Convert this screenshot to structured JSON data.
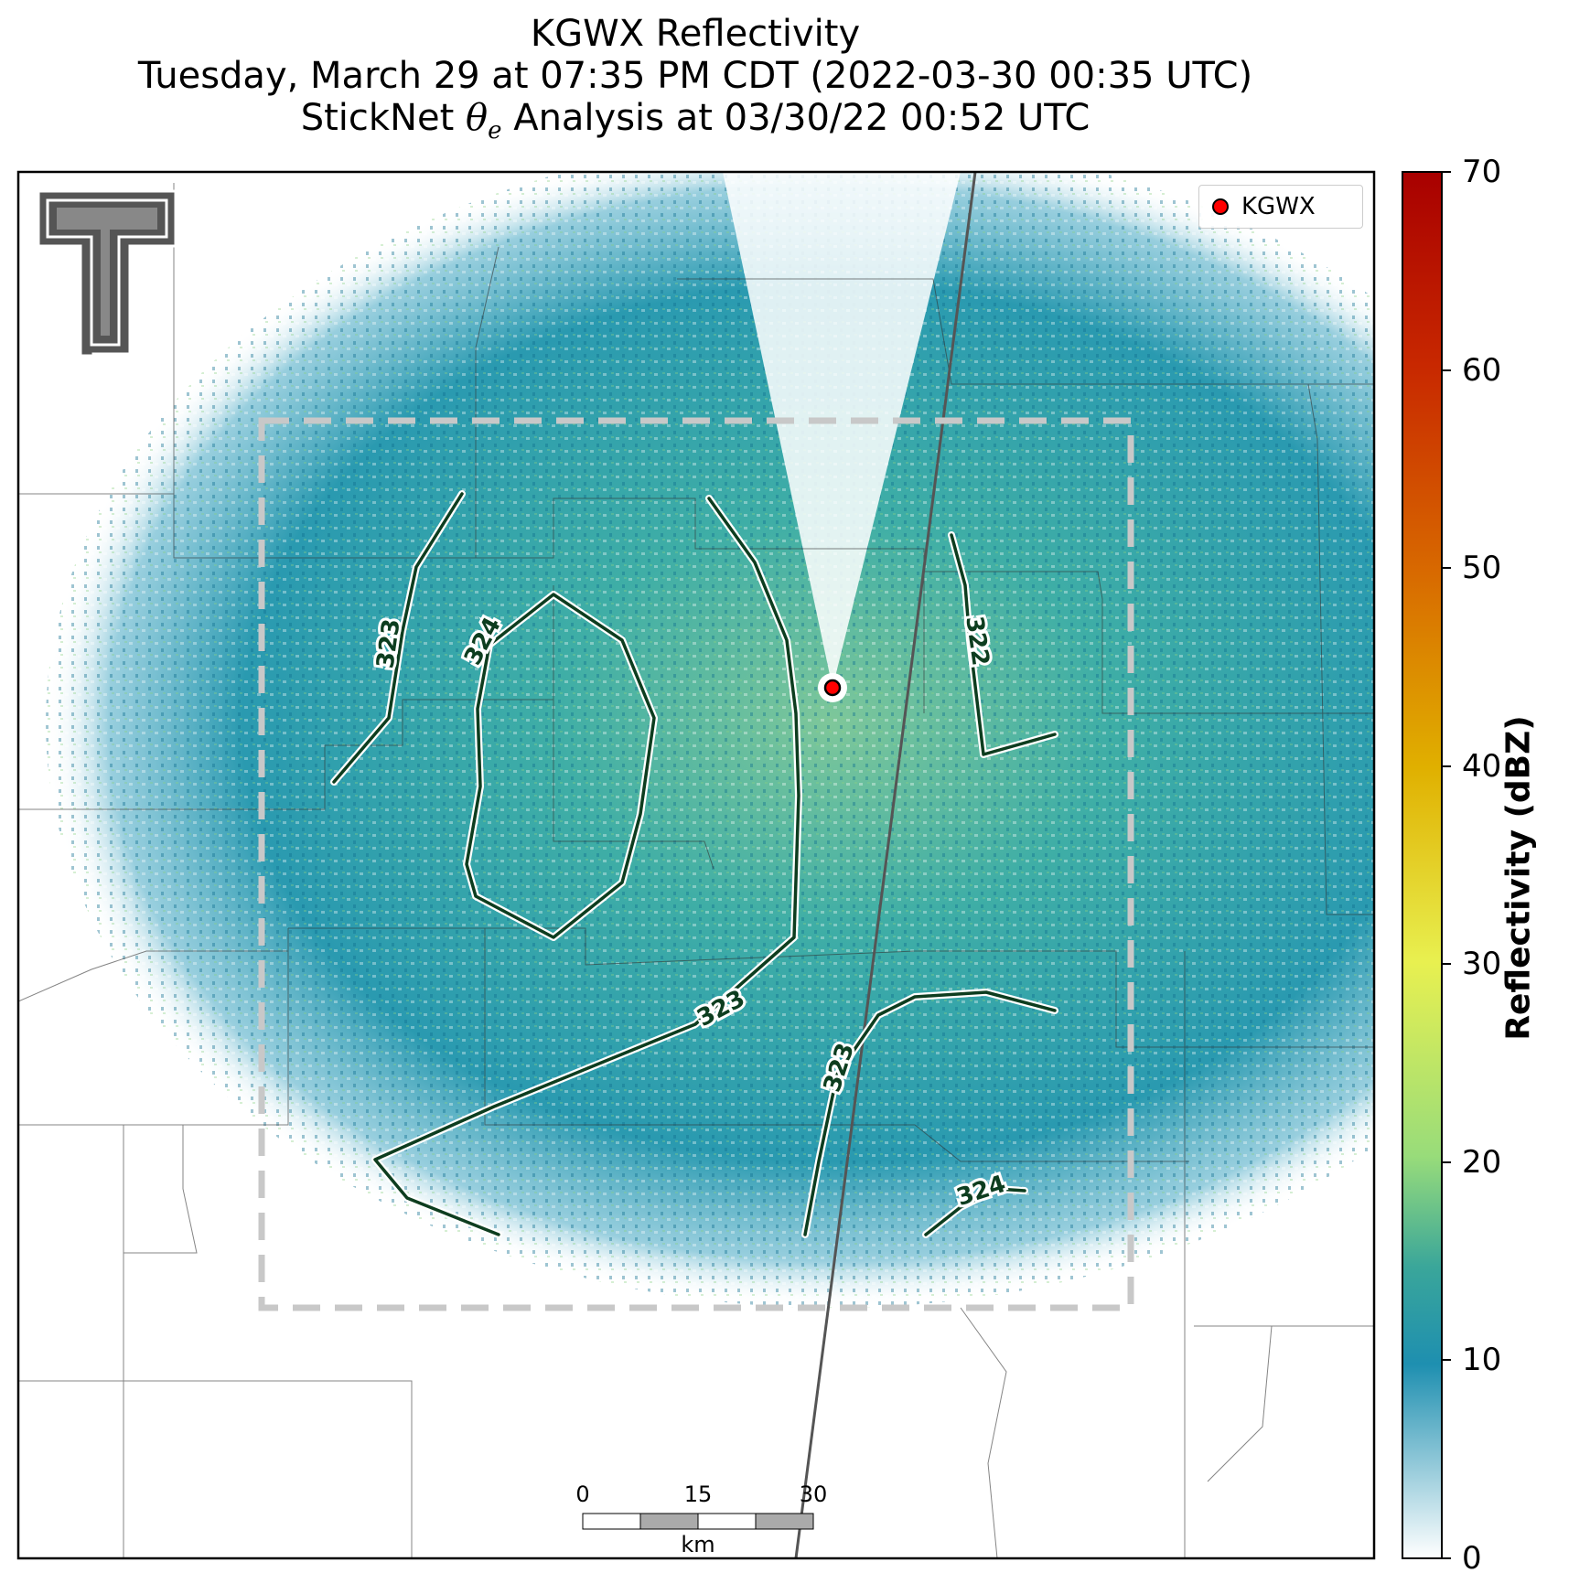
{
  "title": {
    "line1": "KGWX Reflectivity",
    "line2": "Tuesday, March 29 at 07:35 PM CDT (2022-03-30 00:35 UTC)",
    "line3_prefix": "StickNet",
    "line3_symbol": "θ",
    "line3_subscript": "e",
    "line3_suffix": "Analysis at 03/30/22 00:52 UTC"
  },
  "legend": {
    "label": "KGWX",
    "marker_color": "#ff0000"
  },
  "colorbar": {
    "label": "Reflectivity (dBZ)",
    "min": 0,
    "max": 70,
    "ticks": [
      "0",
      "10",
      "20",
      "30",
      "40",
      "50",
      "60",
      "70"
    ],
    "stops": [
      "#ffffff",
      "#1e8fb0",
      "#2aa39a",
      "#a8e07a",
      "#e8f050",
      "#e0b000",
      "#d06000",
      "#a80000"
    ]
  },
  "scale_bar": {
    "ticks": [
      "0",
      "15",
      "30"
    ],
    "unit": "km"
  },
  "contour_labels": [
    "323",
    "324",
    "322",
    "323",
    "323",
    "324"
  ],
  "colors": {
    "contour": "#0d3d1f",
    "radar": "#2a9ab0",
    "dashed_box": "#c8c8c8"
  },
  "logo": "texas-tech-double-t-logo"
}
